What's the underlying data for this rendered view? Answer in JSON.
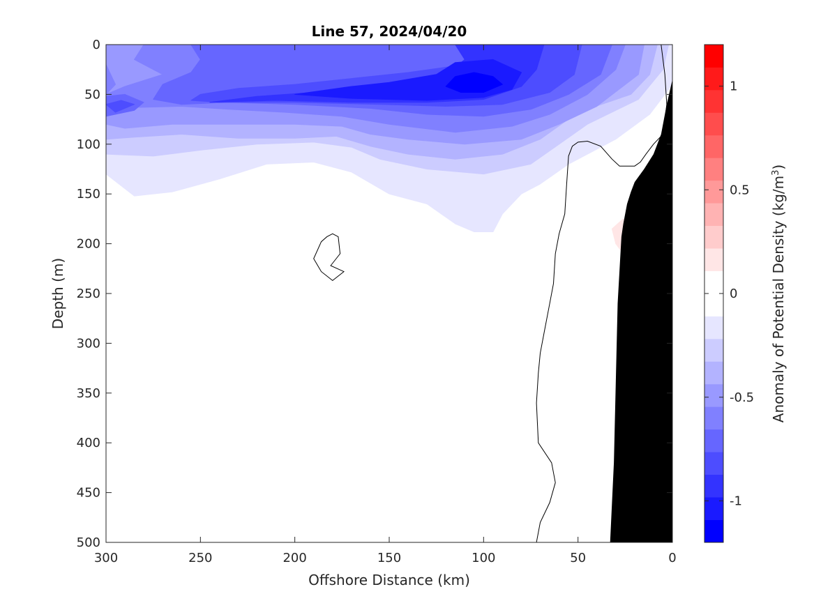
{
  "chart_data": {
    "type": "heatmap",
    "subtype": "filled-contour",
    "title": "Line 57, 2024/04/20",
    "xlabel": "Offshore Distance (km)",
    "ylabel": "Depth (m)",
    "xlim": [
      300,
      0
    ],
    "ylim": [
      500,
      0
    ],
    "x_ticks": [
      "300",
      "250",
      "200",
      "150",
      "100",
      "50",
      "0"
    ],
    "y_ticks": [
      "0",
      "50",
      "100",
      "150",
      "200",
      "250",
      "300",
      "350",
      "400",
      "450",
      "500"
    ],
    "x_tick_values": [
      300,
      250,
      200,
      150,
      100,
      50,
      0
    ],
    "y_tick_values": [
      0,
      50,
      100,
      150,
      200,
      250,
      300,
      350,
      400,
      450,
      500
    ],
    "colorbar": {
      "label_main": "Anomaly of Potential Density (kg/m",
      "label_sup": "3",
      "label_close": ")",
      "range": [
        -1.2,
        1.2
      ],
      "tick_labels": [
        "1",
        "0.5",
        "0",
        "-0.5",
        "-1"
      ],
      "tick_values": [
        1,
        0.5,
        0,
        -0.5,
        -1
      ],
      "step": 0.1,
      "colors": [
        "#0000ff",
        "#1a1aff",
        "#3333ff",
        "#4d4dff",
        "#6666ff",
        "#8080ff",
        "#9999ff",
        "#b3b3ff",
        "#ccccff",
        "#e6e6ff",
        "#ffffff",
        "#ffffff",
        "#ffe6e6",
        "#ffcccc",
        "#ffb3b3",
        "#ff9999",
        "#ff8080",
        "#ff6666",
        "#ff4d4d",
        "#ff3333",
        "#ff1a1a",
        "#ff0000"
      ]
    },
    "layers": [
      {
        "level": -0.1,
        "color": "#e6e6ff",
        "points": [
          [
            300,
            0
          ],
          [
            0,
            0
          ],
          [
            0,
            40
          ],
          [
            12,
            70
          ],
          [
            30,
            95
          ],
          [
            55,
            120
          ],
          [
            70,
            140
          ],
          [
            80,
            150
          ],
          [
            90,
            170
          ],
          [
            95,
            188
          ],
          [
            105,
            188
          ],
          [
            115,
            180
          ],
          [
            130,
            160
          ],
          [
            150,
            150
          ],
          [
            170,
            128
          ],
          [
            190,
            118
          ],
          [
            215,
            120
          ],
          [
            240,
            135
          ],
          [
            265,
            148
          ],
          [
            285,
            152
          ],
          [
            300,
            130
          ]
        ]
      },
      {
        "level": -0.2,
        "color": "#ccccff",
        "points": [
          [
            300,
            0
          ],
          [
            2,
            0
          ],
          [
            5,
            25
          ],
          [
            18,
            55
          ],
          [
            45,
            80
          ],
          [
            60,
            100
          ],
          [
            75,
            120
          ],
          [
            100,
            130
          ],
          [
            130,
            125
          ],
          [
            155,
            115
          ],
          [
            170,
            103
          ],
          [
            190,
            98
          ],
          [
            220,
            100
          ],
          [
            250,
            106
          ],
          [
            275,
            112
          ],
          [
            300,
            110
          ]
        ]
      },
      {
        "level": -0.3,
        "color": "#b3b3ff",
        "points": [
          [
            300,
            0
          ],
          [
            8,
            0
          ],
          [
            12,
            30
          ],
          [
            22,
            50
          ],
          [
            50,
            68
          ],
          [
            70,
            95
          ],
          [
            90,
            110
          ],
          [
            115,
            115
          ],
          [
            140,
            110
          ],
          [
            160,
            102
          ],
          [
            178,
            92
          ],
          [
            200,
            94
          ],
          [
            230,
            94
          ],
          [
            260,
            90
          ],
          [
            285,
            93
          ],
          [
            300,
            95
          ]
        ]
      },
      {
        "level": -0.4,
        "color": "#9999ff",
        "points": [
          [
            300,
            0
          ],
          [
            15,
            0
          ],
          [
            18,
            30
          ],
          [
            40,
            62
          ],
          [
            60,
            80
          ],
          [
            80,
            95
          ],
          [
            110,
            100
          ],
          [
            140,
            95
          ],
          [
            160,
            90
          ],
          [
            175,
            82
          ],
          [
            200,
            80
          ],
          [
            230,
            80
          ],
          [
            265,
            80
          ],
          [
            290,
            84
          ],
          [
            300,
            80
          ]
        ]
      },
      {
        "level": -0.5,
        "color": "#8080ff",
        "points": [
          [
            300,
            0
          ],
          [
            300,
            20
          ],
          [
            295,
            40
          ],
          [
            300,
            50
          ]
        ]
      },
      {
        "level": -0.5,
        "color": "#8080ff",
        "points": [
          [
            280,
            0
          ],
          [
            25,
            0
          ],
          [
            30,
            25
          ],
          [
            45,
            50
          ],
          [
            65,
            70
          ],
          [
            85,
            82
          ],
          [
            115,
            88
          ],
          [
            150,
            80
          ],
          [
            175,
            72
          ],
          [
            205,
            68
          ],
          [
            235,
            65
          ],
          [
            260,
            62
          ],
          [
            282,
            63
          ],
          [
            300,
            58
          ],
          [
            300,
            50
          ],
          [
            290,
            42
          ],
          [
            270,
            30
          ],
          [
            285,
            15
          ]
        ]
      },
      {
        "level": -0.6,
        "color": "#6666ff",
        "points": [
          [
            300,
            52
          ],
          [
            300,
            72
          ],
          [
            285,
            66
          ],
          [
            280,
            58
          ],
          [
            290,
            50
          ]
        ]
      },
      {
        "level": -0.6,
        "color": "#6666ff",
        "points": [
          [
            255,
            0
          ],
          [
            32,
            0
          ],
          [
            38,
            30
          ],
          [
            55,
            50
          ],
          [
            75,
            65
          ],
          [
            100,
            72
          ],
          [
            130,
            70
          ],
          [
            160,
            64
          ],
          [
            200,
            60
          ],
          [
            235,
            58
          ],
          [
            260,
            60
          ],
          [
            275,
            55
          ],
          [
            270,
            40
          ],
          [
            255,
            28
          ],
          [
            250,
            15
          ]
        ]
      },
      {
        "level": -0.7,
        "color": "#4d4dff",
        "points": [
          [
            300,
            60
          ],
          [
            292,
            56
          ],
          [
            285,
            60
          ],
          [
            295,
            68
          ]
        ]
      },
      {
        "level": -0.7,
        "color": "#4d4dff",
        "points": [
          [
            250,
            50
          ],
          [
            230,
            44
          ],
          [
            200,
            40
          ],
          [
            170,
            34
          ],
          [
            140,
            28
          ],
          [
            110,
            20
          ],
          [
            85,
            8
          ],
          [
            80,
            0
          ],
          [
            48,
            0
          ],
          [
            52,
            30
          ],
          [
            65,
            48
          ],
          [
            90,
            60
          ],
          [
            120,
            62
          ],
          [
            155,
            60
          ],
          [
            200,
            58
          ],
          [
            240,
            58
          ],
          [
            255,
            56
          ]
        ]
      },
      {
        "level": -0.8,
        "color": "#3333ff",
        "points": [
          [
            245,
            58
          ],
          [
            220,
            52
          ],
          [
            190,
            48
          ],
          [
            160,
            45
          ],
          [
            140,
            40
          ],
          [
            120,
            30
          ],
          [
            110,
            15
          ],
          [
            115,
            0
          ],
          [
            68,
            0
          ],
          [
            72,
            25
          ],
          [
            80,
            42
          ],
          [
            100,
            55
          ],
          [
            130,
            58
          ],
          [
            170,
            58
          ],
          [
            210,
            56
          ]
        ]
      },
      {
        "level": -0.9,
        "color": "#1a1aff",
        "points": [
          [
            200,
            50
          ],
          [
            170,
            42
          ],
          [
            150,
            38
          ],
          [
            125,
            30
          ],
          [
            115,
            18
          ],
          [
            95,
            15
          ],
          [
            80,
            28
          ],
          [
            85,
            45
          ],
          [
            100,
            53
          ],
          [
            130,
            56
          ],
          [
            170,
            54
          ]
        ]
      },
      {
        "level": -1.0,
        "color": "#0000ff",
        "points": [
          [
            120,
            42
          ],
          [
            115,
            32
          ],
          [
            105,
            28
          ],
          [
            95,
            32
          ],
          [
            90,
            40
          ],
          [
            100,
            48
          ],
          [
            112,
            48
          ]
        ]
      },
      {
        "level": 0.1,
        "color": "#ffe6e6",
        "points": [
          [
            26,
            175
          ],
          [
            32,
            185
          ],
          [
            30,
            200
          ],
          [
            26,
            210
          ],
          [
            23,
            195
          ],
          [
            24,
            180
          ]
        ]
      }
    ],
    "contour_lines": [
      {
        "level": 0,
        "points": [
          [
            6,
            0
          ],
          [
            4,
            30
          ],
          [
            3,
            60
          ],
          [
            5,
            90
          ],
          [
            10,
            100
          ],
          [
            14,
            110
          ],
          [
            17,
            118
          ],
          [
            20,
            122
          ],
          [
            28,
            122
          ],
          [
            32,
            115
          ],
          [
            38,
            102
          ],
          [
            45,
            97
          ],
          [
            50,
            98
          ],
          [
            53,
            102
          ],
          [
            55,
            112
          ],
          [
            56,
            140
          ],
          [
            57,
            170
          ],
          [
            60,
            190
          ],
          [
            62,
            210
          ],
          [
            63,
            240
          ],
          [
            65,
            260
          ],
          [
            68,
            290
          ],
          [
            70,
            310
          ],
          [
            71,
            330
          ],
          [
            72,
            360
          ],
          [
            71,
            400
          ],
          [
            64,
            420
          ],
          [
            62,
            440
          ],
          [
            65,
            460
          ],
          [
            70,
            480
          ],
          [
            72,
            500
          ]
        ]
      },
      {
        "level": 0,
        "closed": true,
        "points": [
          [
            180,
            190
          ],
          [
            177,
            193
          ],
          [
            176,
            210
          ],
          [
            181,
            222
          ],
          [
            174,
            228
          ],
          [
            180,
            237
          ],
          [
            186,
            228
          ],
          [
            190,
            215
          ],
          [
            186,
            198
          ],
          [
            183,
            193
          ]
        ]
      }
    ],
    "bathymetry": {
      "color": "#000000",
      "points": [
        [
          0,
          35
        ],
        [
          3,
          60
        ],
        [
          6,
          90
        ],
        [
          10,
          110
        ],
        [
          15,
          125
        ],
        [
          20,
          138
        ],
        [
          22,
          148
        ],
        [
          24,
          160
        ],
        [
          26,
          180
        ],
        [
          27,
          193
        ],
        [
          29,
          260
        ],
        [
          30,
          340
        ],
        [
          31,
          420
        ],
        [
          33,
          500
        ],
        [
          0,
          500
        ]
      ]
    }
  }
}
